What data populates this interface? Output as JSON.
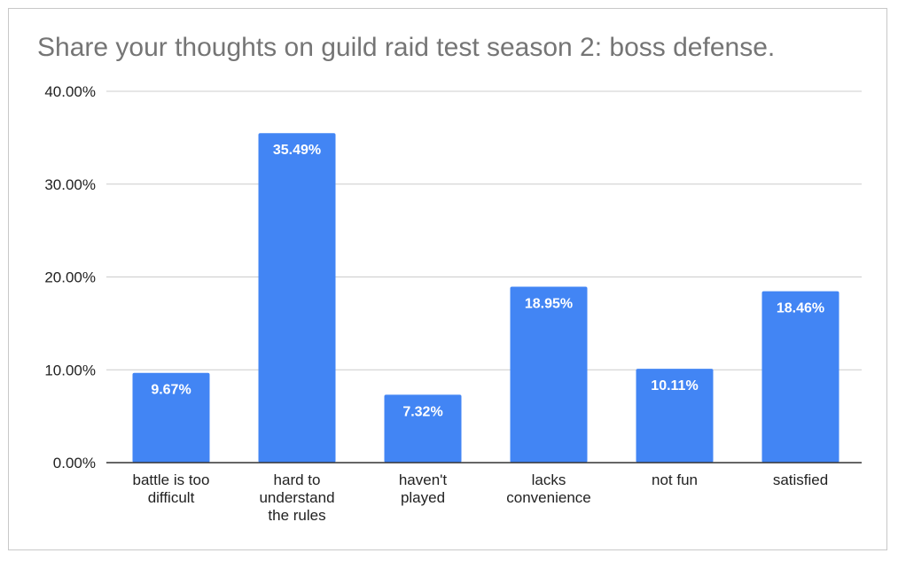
{
  "chart_data": {
    "type": "bar",
    "title": "Share your thoughts on guild raid test season 2: boss defense.",
    "categories": [
      [
        "battle is too",
        "difficult"
      ],
      [
        "hard to",
        "understand",
        "the rules"
      ],
      [
        "haven't",
        "played"
      ],
      [
        "lacks",
        "convenience"
      ],
      [
        "not fun"
      ],
      [
        "satisfied"
      ]
    ],
    "values": [
      9.67,
      35.49,
      7.32,
      18.95,
      10.11,
      18.46
    ],
    "data_labels": [
      "9.67%",
      "35.49%",
      "7.32%",
      "18.95%",
      "10.11%",
      "18.46%"
    ],
    "y_ticks": [
      0,
      10,
      20,
      30,
      40
    ],
    "y_tick_labels": [
      "0.00%",
      "10.00%",
      "20.00%",
      "30.00%",
      "40.00%"
    ],
    "ylim": [
      0,
      40
    ],
    "xlabel": "",
    "ylabel": "",
    "grid": true,
    "legend": "none",
    "colors": {
      "bar": "#4285f4",
      "grid": "#cccccc",
      "axis": "#333333",
      "title": "#757575"
    }
  }
}
